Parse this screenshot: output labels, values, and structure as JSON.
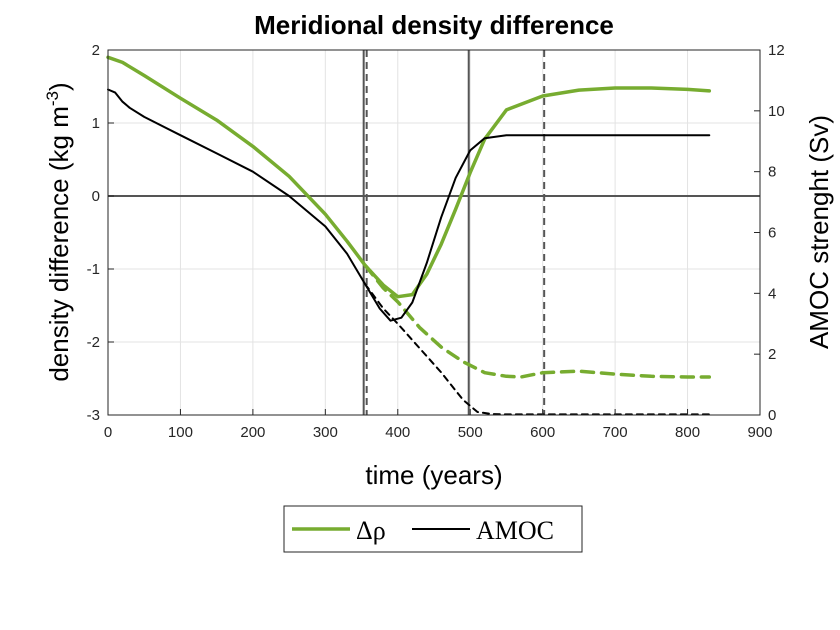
{
  "chart_data": {
    "type": "line",
    "title": "Meridional density difference",
    "xlabel": "time (years)",
    "ylabel_left": "density difference (kg m",
    "ylabel_left_sup": "-3",
    "ylabel_left_tail": ")",
    "ylabel_right": "AMOC strenght (Sv)",
    "xlim": [
      0,
      900
    ],
    "ylim_left": [
      -3,
      2
    ],
    "ylim_right": [
      0,
      12
    ],
    "xticks": [
      0,
      100,
      200,
      300,
      400,
      500,
      600,
      700,
      800,
      900
    ],
    "yticks_left": [
      -3,
      -2,
      -1,
      0,
      1,
      2
    ],
    "yticks_right": [
      0,
      2,
      4,
      6,
      8,
      10,
      12
    ],
    "grid": true,
    "legend_position": "below",
    "colors": {
      "drho": "#77ac30",
      "amoc": "#000000",
      "ref": "#555555"
    },
    "reference_lines": {
      "horizontal_left_y": 0,
      "vertical_solid_x": [
        355,
        500
      ],
      "vertical_dashed_x": [
        355,
        600
      ]
    },
    "series": [
      {
        "name": "Δρ",
        "axis": "left",
        "style": "solid",
        "x": [
          0,
          20,
          50,
          100,
          150,
          200,
          250,
          300,
          330,
          355,
          380,
          400,
          420,
          440,
          460,
          480,
          500,
          520,
          550,
          600,
          650,
          700,
          750,
          800,
          830
        ],
        "y": [
          1.9,
          1.83,
          1.65,
          1.34,
          1.04,
          0.68,
          0.27,
          -0.25,
          -0.62,
          -0.95,
          -1.22,
          -1.38,
          -1.35,
          -1.07,
          -0.66,
          -0.18,
          0.32,
          0.78,
          1.18,
          1.37,
          1.45,
          1.48,
          1.48,
          1.46,
          1.44
        ]
      },
      {
        "name": "Δρ (dashed)",
        "axis": "left",
        "style": "dashed",
        "x": [
          355,
          380,
          400,
          430,
          460,
          490,
          520,
          550,
          570,
          600,
          650,
          700,
          750,
          800,
          830
        ],
        "y": [
          -0.95,
          -1.26,
          -1.45,
          -1.8,
          -2.07,
          -2.27,
          -2.42,
          -2.47,
          -2.48,
          -2.42,
          -2.4,
          -2.44,
          -2.47,
          -2.48,
          -2.48
        ]
      },
      {
        "name": "AMOC",
        "axis": "right",
        "style": "solid",
        "x": [
          0,
          10,
          20,
          30,
          50,
          100,
          150,
          200,
          250,
          300,
          330,
          355,
          375,
          390,
          405,
          420,
          440,
          460,
          480,
          500,
          520,
          550,
          600,
          700,
          800,
          830
        ],
        "y": [
          10.7,
          10.6,
          10.3,
          10.1,
          9.8,
          9.2,
          8.6,
          8.0,
          7.2,
          6.2,
          5.3,
          4.3,
          3.5,
          3.1,
          3.2,
          3.7,
          5.0,
          6.5,
          7.8,
          8.7,
          9.1,
          9.2,
          9.2,
          9.2,
          9.2,
          9.2
        ]
      },
      {
        "name": "AMOC (dashed)",
        "axis": "right",
        "style": "dashed",
        "x": [
          355,
          380,
          400,
          430,
          460,
          490,
          510,
          530,
          550,
          600,
          700,
          800,
          830
        ],
        "y": [
          4.3,
          3.5,
          3.0,
          2.2,
          1.4,
          0.5,
          0.1,
          0.03,
          0.02,
          0.02,
          0.02,
          0.02,
          0.02
        ]
      }
    ],
    "legend": [
      {
        "label": "Δρ",
        "series": 0
      },
      {
        "label": "AMOC",
        "series": 2
      }
    ]
  }
}
